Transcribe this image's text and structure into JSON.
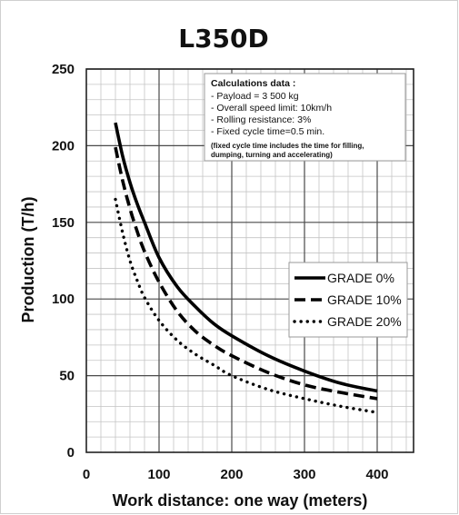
{
  "chart_data": {
    "type": "line",
    "title": "L350D",
    "xlabel": "Work distance: one way (meters)",
    "ylabel": "Production (T/h)",
    "xlim": [
      0,
      450
    ],
    "ylim": [
      0,
      250
    ],
    "xticks": [
      0,
      100,
      200,
      300,
      400
    ],
    "yticks": [
      0,
      50,
      100,
      150,
      200,
      250
    ],
    "grid": true,
    "legend_position": "right",
    "x": [
      40,
      50,
      60,
      70,
      80,
      100,
      125,
      150,
      175,
      200,
      250,
      300,
      350,
      400
    ],
    "series": [
      {
        "name": "GRADE 0%",
        "style": "solid",
        "values": [
          215,
          193,
          176,
          162,
          150,
          127,
          108,
          95,
          84,
          76,
          63,
          53,
          45,
          40
        ]
      },
      {
        "name": "GRADE 10%",
        "style": "dashed",
        "values": [
          199,
          177,
          159,
          144,
          131,
          111,
          92,
          79,
          70,
          63,
          52,
          44,
          39,
          35
        ]
      },
      {
        "name": "GRADE 20%",
        "style": "dotted",
        "values": [
          165,
          143,
          125,
          112,
          101,
          86,
          73,
          64,
          57,
          50,
          41,
          35,
          30,
          26
        ]
      }
    ],
    "annotation": {
      "title": "Calculations data :",
      "lines": [
        "- Payload = 3 500 kg",
        "- Overall speed limit: 10km/h",
        "- Rolling resistance: 3%",
        "- Fixed cycle time=0.5 min."
      ],
      "note_lines": [
        "(fixed cycle time includes the time for filling,",
        "dumping, turning and accelerating)"
      ]
    }
  }
}
